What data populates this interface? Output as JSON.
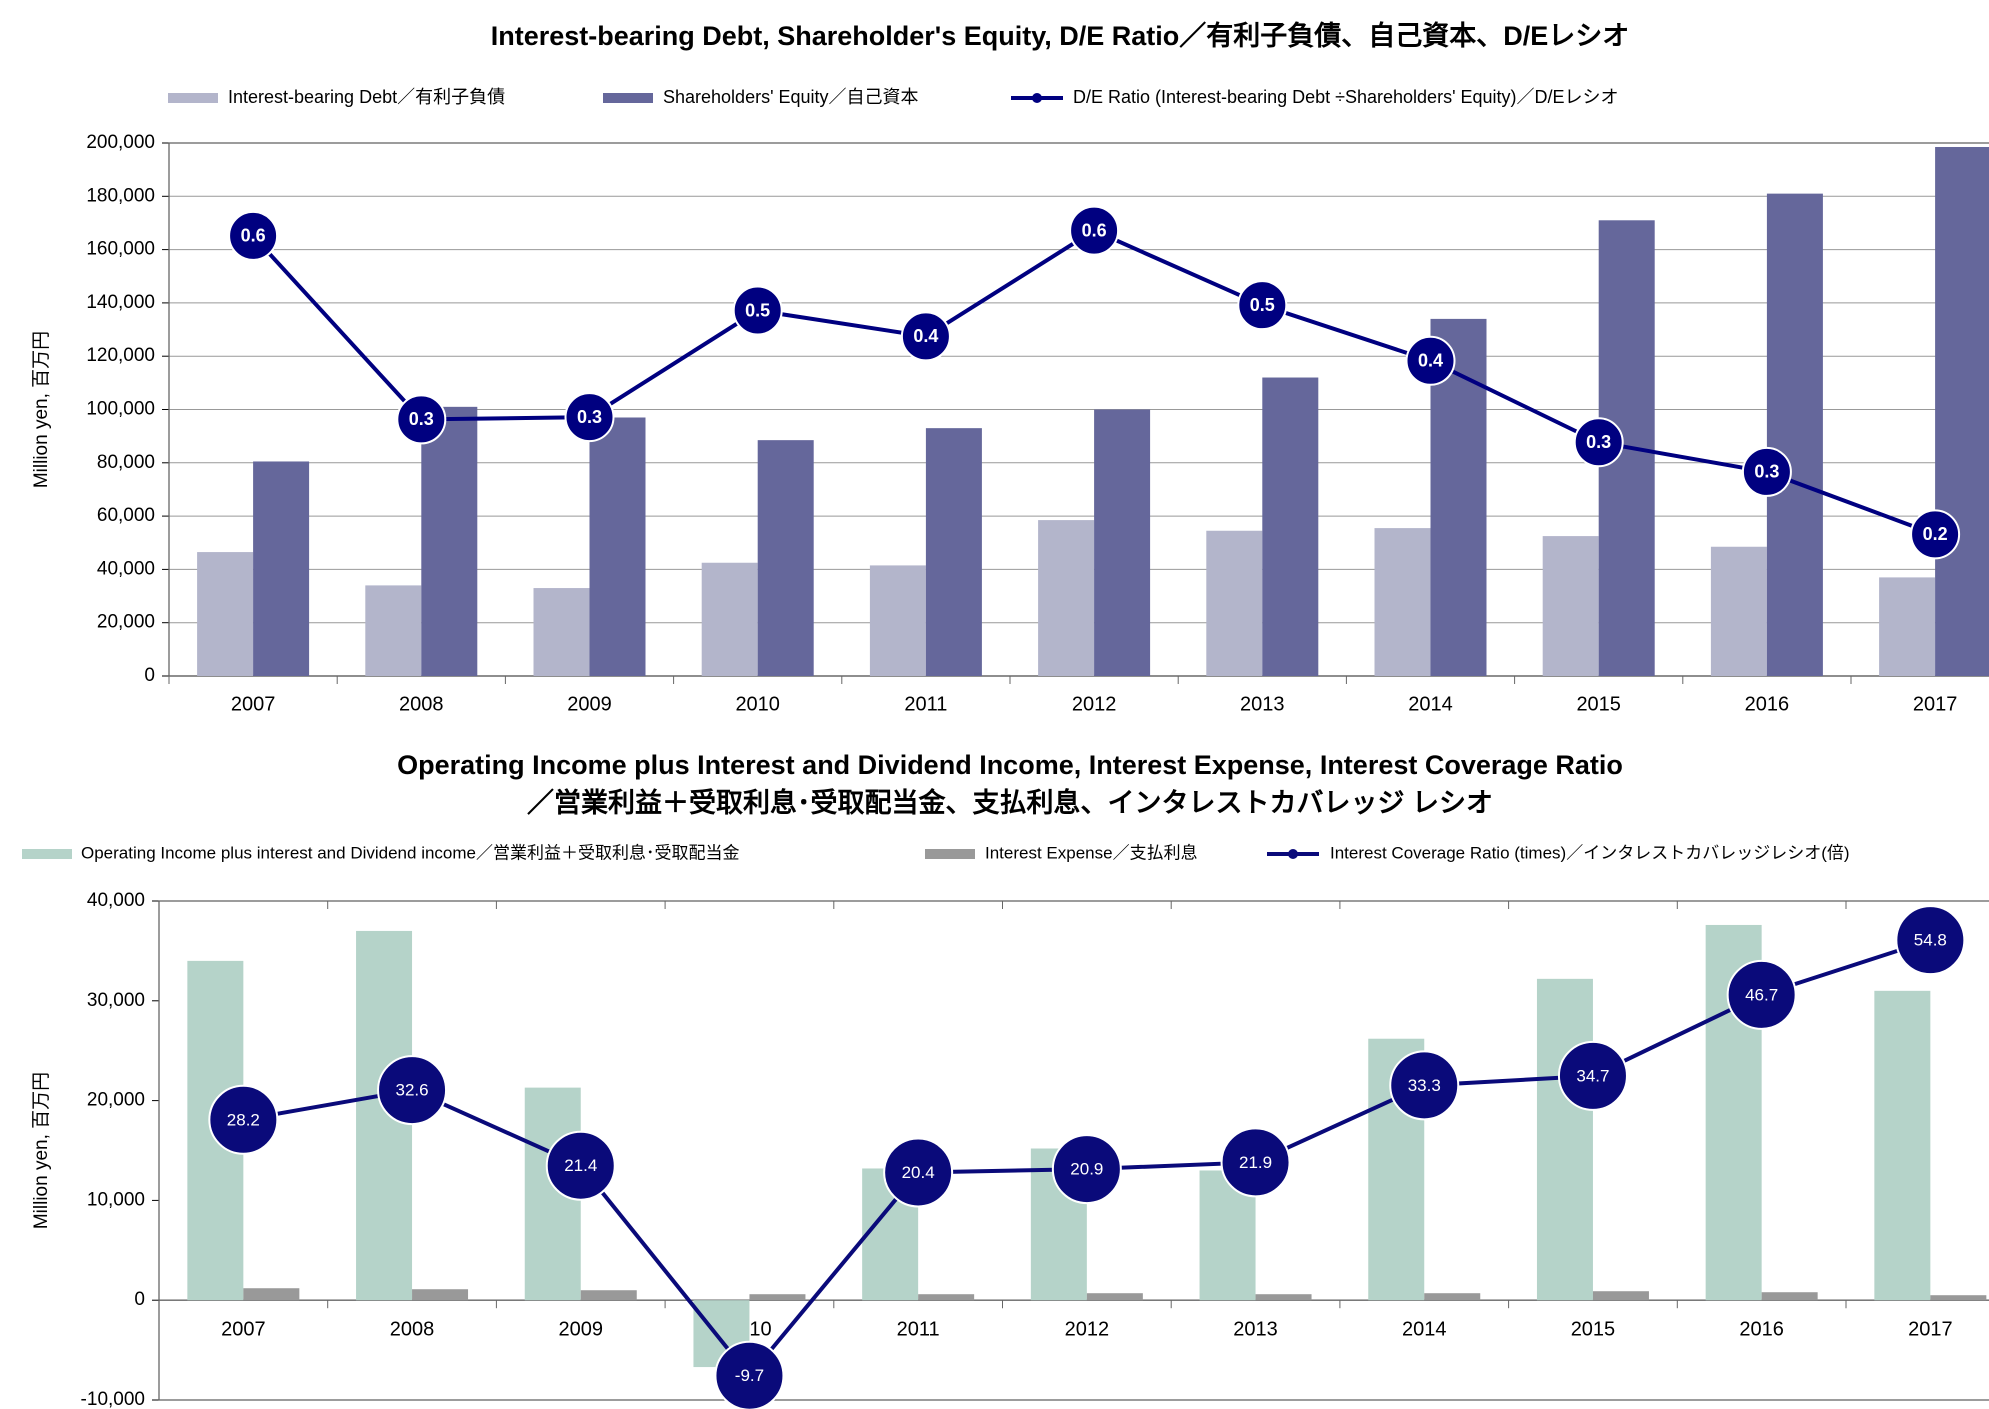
{
  "chart_data": [
    {
      "type": "bar",
      "title": "Interest-bearing Debt, Shareholder's Equity, D/E Ratio／有利子負債、自己資本、D/Eレシオ",
      "ylabel": "Million yen, 百万円",
      "categories": [
        "2007",
        "2008",
        "2009",
        "2010",
        "2011",
        "2012",
        "2013",
        "2014",
        "2015",
        "2016",
        "2017"
      ],
      "series": [
        {
          "name": "Interest-bearing Debt／有利子負債",
          "color": "#b3b5cb",
          "values": [
            46500,
            34000,
            33000,
            42500,
            41500,
            58500,
            54500,
            55500,
            52500,
            48500,
            37000
          ]
        },
        {
          "name": "Shareholders' Equity／自己資本",
          "color": "#65679b",
          "values": [
            80500,
            101000,
            97000,
            88500,
            93000,
            100000,
            112000,
            134000,
            171000,
            181000,
            198500
          ]
        },
        {
          "name": "D/E Ratio (Interest-bearing Debt ÷Shareholders' Equity)／D/Eレシオ",
          "color": "#000080",
          "type": "line",
          "axis": "y2",
          "values": [
            0.578,
            0.337,
            0.34,
            0.48,
            0.446,
            0.585,
            0.487,
            0.414,
            0.307,
            0.268,
            0.186
          ],
          "value_labels": [
            "0.6",
            "0.3",
            "0.3",
            "0.5",
            "0.4",
            "0.6",
            "0.5",
            "0.4",
            "0.3",
            "0.3",
            "0.2"
          ]
        }
      ],
      "ylim": [
        0,
        200000
      ],
      "yticks": [
        0,
        {
          "value": 20000,
          "label": "20,000"
        },
        {
          "value": 40000,
          "label": "40,000"
        },
        {
          "value": 60000,
          "label": "60,000"
        },
        {
          "value": 80000,
          "label": "80,000"
        },
        {
          "value": 100000,
          "label": "100,000"
        },
        {
          "value": 120000,
          "label": "120,000"
        },
        {
          "value": 140000,
          "label": "140,000"
        },
        {
          "value": 160000,
          "label": "160,000"
        },
        {
          "value": 180000,
          "label": "180,000"
        },
        {
          "value": 200000,
          "label": "200,000"
        }
      ],
      "y2lim": [
        0,
        0.7
      ],
      "grid": true
    },
    {
      "type": "bar",
      "title": [
        "Operating Income plus Interest and Dividend Income, Interest Expense, Interest Coverage Ratio",
        "／営業利益＋受取利息･受取配当金、支払利息、インタレストカバレッジ レシオ"
      ],
      "ylabel": "Million yen, 百万円",
      "categories": [
        "2007",
        "2008",
        "2009",
        "2010",
        "2011",
        "2012",
        "2013",
        "2014",
        "2015",
        "2016",
        "2017"
      ],
      "series": [
        {
          "name": "Operating Income plus interest and Dividend income／営業利益＋受取利息･受取配当金",
          "color": "#b5d3c9",
          "values": [
            34000,
            37000,
            21300,
            -6700,
            13200,
            15200,
            13000,
            26200,
            32200,
            37600,
            31000
          ]
        },
        {
          "name": "Interest Expense／支払利息",
          "color": "#999999",
          "values": [
            1200,
            1100,
            1000,
            600,
            600,
            700,
            600,
            700,
            900,
            800,
            500
          ]
        },
        {
          "name": "Interest Coverage Ratio (times)／インタレストカバレッジレシオ(倍)",
          "color": "#0a0a7a",
          "type": "line",
          "axis": "y2",
          "values": [
            28.2,
            32.6,
            21.4,
            -9.7,
            20.4,
            20.9,
            21.9,
            33.3,
            34.7,
            46.7,
            54.8
          ]
        }
      ],
      "ylim": [
        -10000,
        40000
      ],
      "yticks": [
        {
          "value": -10000,
          "label": "-10,000"
        },
        0,
        {
          "value": 10000,
          "label": "10,000"
        },
        {
          "value": 20000,
          "label": "20,000"
        },
        {
          "value": 30000,
          "label": "30,000"
        },
        {
          "value": 40000,
          "label": "40,000"
        }
      ],
      "y2lim": [
        -13.3,
        60.6
      ],
      "grid": false
    }
  ]
}
